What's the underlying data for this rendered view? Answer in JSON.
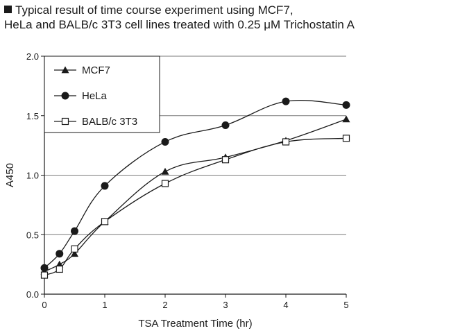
{
  "caption": {
    "line1": "Typical result of time course experiment using MCF7,",
    "line2": "HeLa and BALB/c 3T3 cell lines treated with 0.25 μM Trichostatin A"
  },
  "colors": {
    "ink": "#1a1a1a",
    "grid": "#7a7a7a",
    "marker_fill_open": "#ffffff"
  },
  "chart_data": {
    "type": "line",
    "title": "",
    "xlabel": "TSA Treatment Time (hr)",
    "ylabel": "A450",
    "xlim": [
      0,
      5
    ],
    "ylim": [
      0,
      2.0
    ],
    "xticks": [
      0,
      1,
      2,
      3,
      4,
      5
    ],
    "xtick_labels": [
      "0",
      "1",
      "2",
      "3",
      "4",
      "5"
    ],
    "yticks": [
      0,
      0.5,
      1.0,
      1.5,
      2.0
    ],
    "ytick_labels": [
      "0.0",
      "0.5",
      "1.0",
      "1.5",
      "2.0"
    ],
    "grid": "horizontal",
    "legend_position": "top-left",
    "x": [
      0,
      0.25,
      0.5,
      1,
      2,
      3,
      4,
      5
    ],
    "series": [
      {
        "name": "MCF7",
        "marker": "triangle",
        "values": [
          0.19,
          0.25,
          0.34,
          0.61,
          1.03,
          1.15,
          1.29,
          1.47
        ]
      },
      {
        "name": "HeLa",
        "marker": "circle",
        "values": [
          0.22,
          0.34,
          0.53,
          0.91,
          1.28,
          1.42,
          1.62,
          1.59
        ]
      },
      {
        "name": "BALB/c 3T3",
        "marker": "open-square",
        "values": [
          0.16,
          0.21,
          0.38,
          0.61,
          0.93,
          1.13,
          1.28,
          1.31
        ]
      }
    ]
  }
}
